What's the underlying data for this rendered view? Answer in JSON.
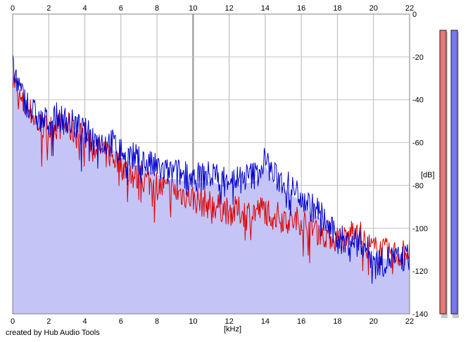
{
  "chart_data": {
    "type": "line",
    "title": "",
    "xlabel": "[kHz]",
    "ylabel": "[dB]",
    "xlim": [
      0,
      22
    ],
    "ylim": [
      -140,
      0
    ],
    "x_ticks": [
      0,
      2,
      4,
      6,
      8,
      10,
      12,
      14,
      16,
      18,
      20,
      22
    ],
    "y_ticks": [
      0,
      -20,
      -40,
      -60,
      -80,
      -100,
      -120,
      -140
    ],
    "x_tick_labels": [
      "0",
      "2",
      "4",
      "6",
      "8",
      "10",
      "12",
      "14",
      "16",
      "18",
      "20",
      "22"
    ],
    "y_tick_labels": [
      "0",
      "-20",
      "-40",
      "-60",
      "-80",
      "-100",
      "-120",
      "-140"
    ],
    "grid": true,
    "fill_color": "#c4c4f6",
    "series": [
      {
        "color": "#e00000",
        "x": [
          0,
          0.2,
          0.5,
          1,
          1.5,
          2,
          2.5,
          3,
          3.5,
          4,
          4.5,
          5,
          5.5,
          6,
          6.5,
          7,
          7.5,
          8,
          8.5,
          9,
          9.5,
          10,
          10.5,
          11,
          11.5,
          12,
          12.5,
          13,
          13.5,
          14,
          14.5,
          15,
          15.5,
          16,
          16.5,
          17,
          17.5,
          18,
          18.5,
          19,
          19.5,
          20,
          20.5,
          21,
          21.5,
          22
        ],
        "values": [
          -28,
          -35,
          -42,
          -46,
          -52,
          -54,
          -52,
          -52,
          -56,
          -57,
          -61,
          -64,
          -66,
          -70,
          -75,
          -77,
          -78,
          -80,
          -82,
          -83,
          -84,
          -86,
          -88,
          -89,
          -90,
          -92,
          -92,
          -93,
          -92,
          -91,
          -94,
          -95,
          -97,
          -96,
          -100,
          -101,
          -103,
          -105,
          -106,
          -98,
          -107,
          -110,
          -111,
          -112,
          -112,
          -110
        ]
      },
      {
        "color": "#0000cc",
        "x": [
          0,
          0.2,
          0.5,
          1,
          1.5,
          2,
          2.5,
          3,
          3.5,
          4,
          4.5,
          5,
          5.5,
          6,
          6.5,
          7,
          7.5,
          8,
          8.5,
          9,
          9.5,
          10,
          10.5,
          11,
          11.5,
          12,
          12.5,
          13,
          13.5,
          14,
          14.5,
          15,
          15.5,
          16,
          16.5,
          17,
          17.5,
          18,
          18.5,
          19,
          19.5,
          20,
          20.5,
          21,
          21.5,
          22
        ],
        "values": [
          -25,
          -30,
          -38,
          -44,
          -50,
          -50,
          -48,
          -50,
          -52,
          -55,
          -58,
          -60,
          -60,
          -64,
          -66,
          -68,
          -70,
          -72,
          -74,
          -74,
          -75,
          -76,
          -76,
          -75,
          -77,
          -76,
          -77,
          -76,
          -75,
          -68,
          -76,
          -78,
          -82,
          -84,
          -90,
          -92,
          -100,
          -104,
          -107,
          -105,
          -108,
          -115,
          -116,
          -114,
          -115,
          -113
        ]
      }
    ],
    "level_meters": [
      {
        "color": "#e97777",
        "level": 0.94
      },
      {
        "color": "#7777f0",
        "level": 0.94
      }
    ]
  },
  "credit": "created by Hub Audio Tools"
}
